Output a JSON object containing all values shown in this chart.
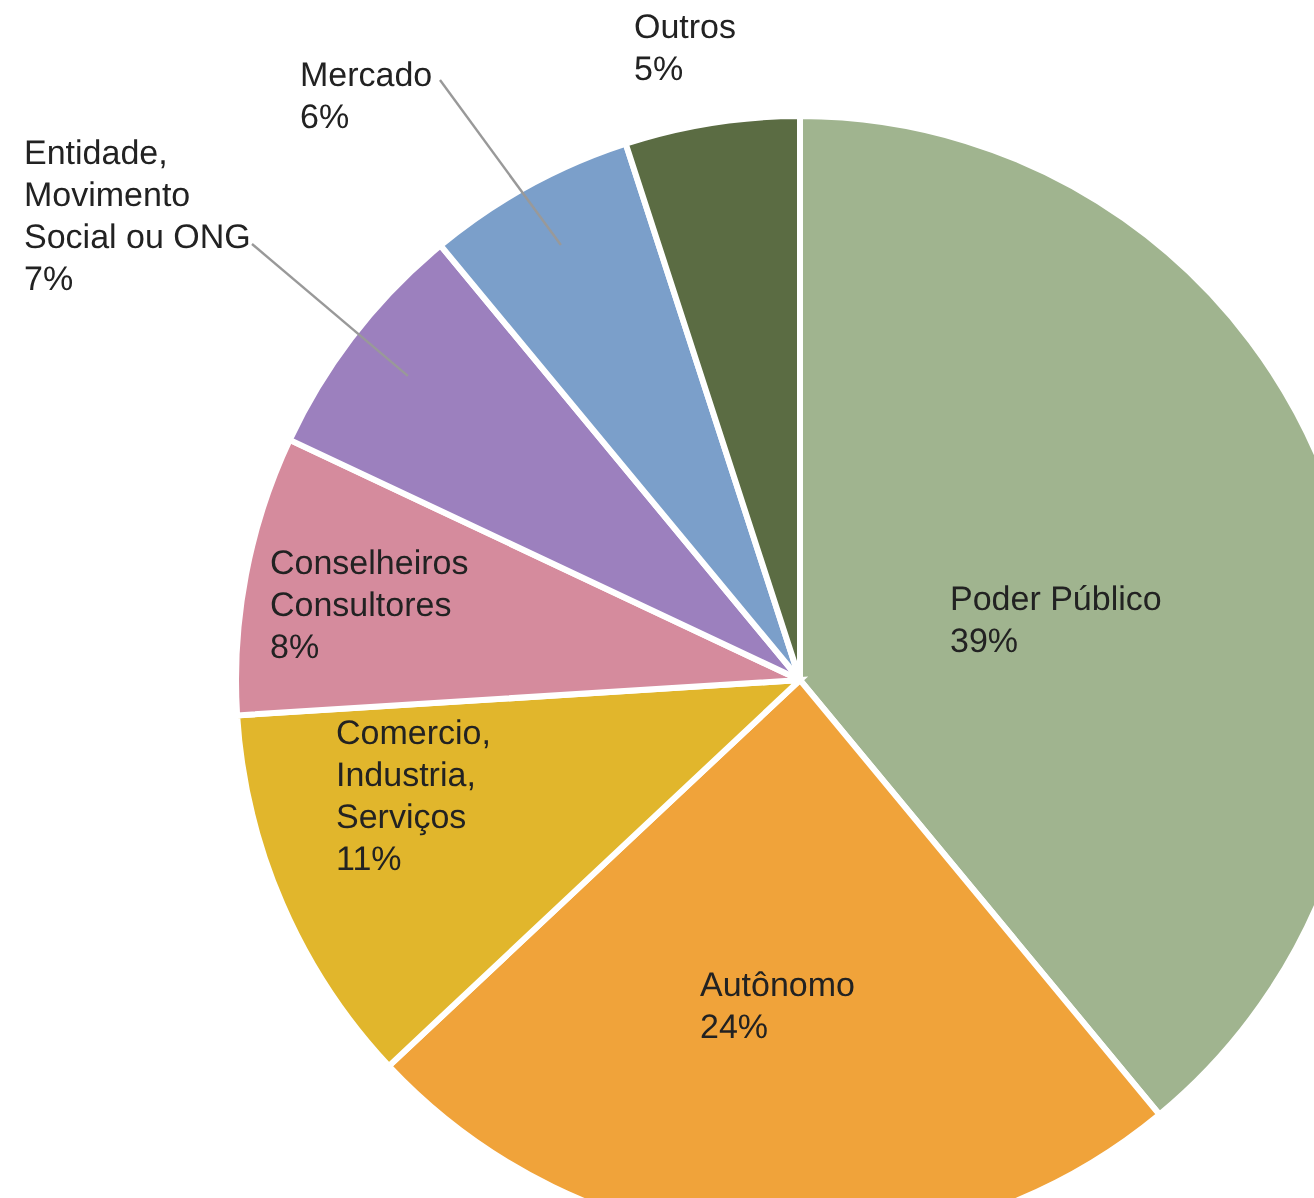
{
  "chart_data": {
    "type": "pie",
    "categories": [
      "Poder Público",
      "Autônomo",
      "Comercio, Industria, Serviços",
      "Conselheiros Consultores",
      "Entidade, Movimento Social ou ONG",
      "Mercado",
      "Outros"
    ],
    "values": [
      39,
      24,
      11,
      8,
      7,
      6,
      5
    ],
    "value_labels": [
      "39%",
      "24%",
      "11%",
      "8%",
      "7%",
      "6%",
      "5%"
    ],
    "colors": [
      "#a0b48f",
      "#f0a33a",
      "#e1b62c",
      "#d58b9d",
      "#9c80be",
      "#7b9fca",
      "#5b6c43"
    ],
    "legend": false
  }
}
